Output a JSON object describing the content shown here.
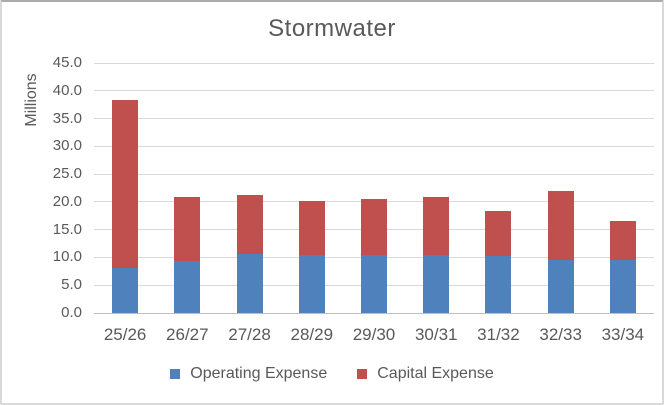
{
  "chart_data": {
    "type": "bar",
    "stacked": true,
    "title": "Stormwater",
    "xlabel": "",
    "ylabel": "Millions",
    "categories": [
      "25/26",
      "26/27",
      "27/28",
      "28/29",
      "29/30",
      "30/31",
      "31/32",
      "32/33",
      "33/34"
    ],
    "series": [
      {
        "name": "Operating Expense",
        "color": "#4F81BD",
        "values": [
          8.1,
          9.3,
          10.6,
          10.4,
          10.5,
          10.5,
          10.2,
          9.6,
          9.6
        ]
      },
      {
        "name": "Capital Expense",
        "color": "#C0504D",
        "values": [
          30.2,
          11.5,
          10.7,
          9.7,
          10.1,
          10.3,
          8.2,
          12.3,
          7.0
        ]
      }
    ],
    "totals": [
      38.3,
      20.8,
      21.3,
      20.1,
      20.6,
      20.8,
      18.4,
      21.9,
      16.6
    ],
    "ylim": [
      0,
      45
    ],
    "ytick_step": 5,
    "ytick_labels": [
      "45.0",
      "40.0",
      "35.0",
      "30.0",
      "25.0",
      "20.0",
      "15.0",
      "10.0",
      "5.0",
      "0.0"
    ],
    "grid": true,
    "legend_position": "bottom",
    "colors": {
      "text": "#595959",
      "gridline": "#D9D9D9",
      "axis_line": "#BFBFBF",
      "border": "#D9D9D9",
      "background": "#FFFFFF"
    }
  }
}
